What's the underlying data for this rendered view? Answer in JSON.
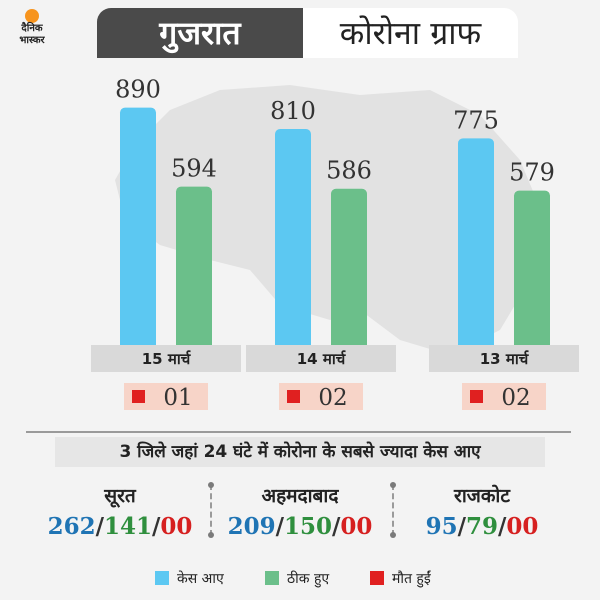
{
  "header": {
    "logo_text": "दैनिक भास्कर",
    "title_state": "गुजरात",
    "title_graph": "कोरोना ग्राफ"
  },
  "colors": {
    "cases": "#5cc8f2",
    "recovered": "#6bbf8a",
    "deaths": "#e02020",
    "death_box_bg": "#f7d4c8",
    "date_box_bg": "#d9d9d9"
  },
  "chart_data": {
    "type": "bar",
    "categories": [
      "15 मार्च",
      "14 मार्च",
      "13 मार्च"
    ],
    "series": [
      {
        "name": "केस आए",
        "values": [
          890,
          810,
          775
        ]
      },
      {
        "name": "ठीक हुए",
        "values": [
          594,
          586,
          579
        ]
      },
      {
        "name": "मौत हुईं",
        "values": [
          1,
          2,
          2
        ]
      }
    ],
    "death_labels": [
      "01",
      "02",
      "02"
    ],
    "ylim": [
      0,
      900
    ]
  },
  "districts": {
    "title": "3 जिले जहां 24 घंटे में कोरोना के सबसे ज्यादा केस आए",
    "items": [
      {
        "name": "सूरत",
        "cases": "262",
        "recovered": "141",
        "deaths": "00"
      },
      {
        "name": "अहमदाबाद",
        "cases": "209",
        "recovered": "150",
        "deaths": "00"
      },
      {
        "name": "राजकोट",
        "cases": "95",
        "recovered": "79",
        "deaths": "00"
      }
    ],
    "separator": "/"
  },
  "legend": {
    "cases": "केस आए",
    "recovered": "ठीक हुए",
    "deaths": "मौत हुईं"
  }
}
